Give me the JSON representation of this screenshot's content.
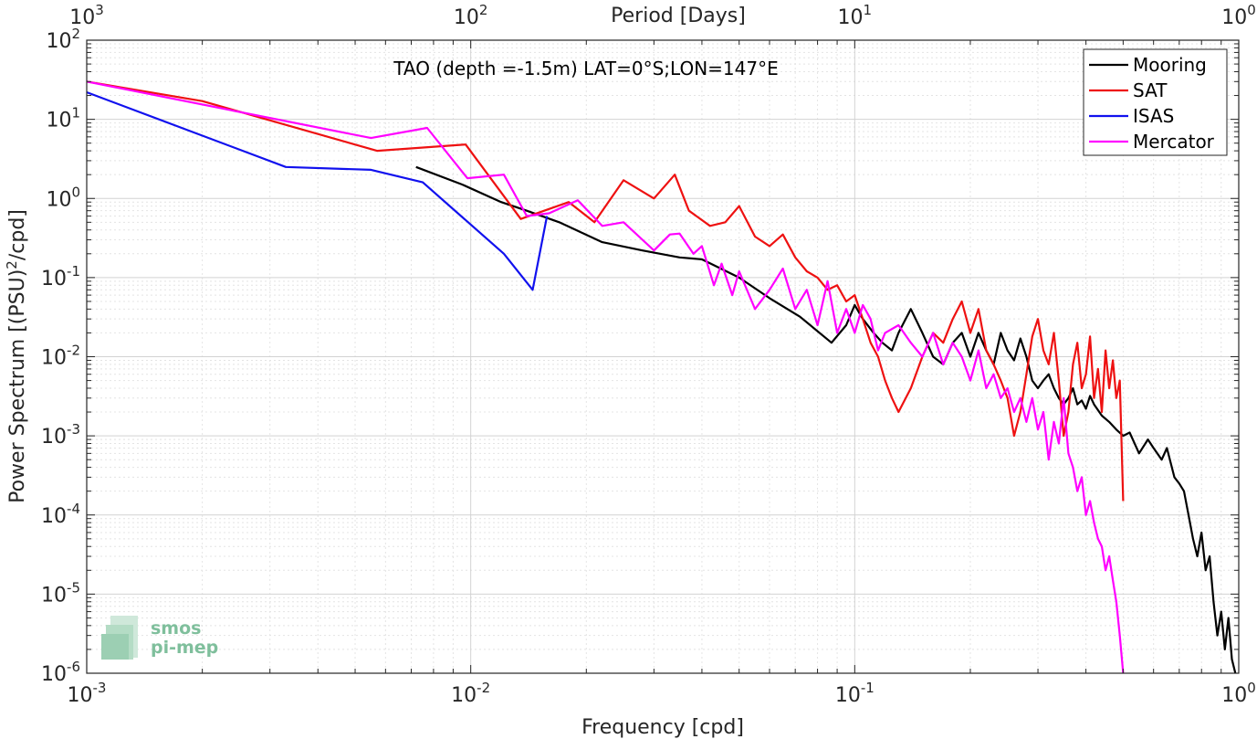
{
  "chart_data": {
    "type": "line",
    "title": "TAO (depth =-1.5m) LAT=0°S;LON=147°E",
    "xlabel": "Frequency [cpd]",
    "ylabel": "Power Spectrum [(PSU)^2/cpd]",
    "top_xlabel": "Period [Days]",
    "xscale": "log",
    "yscale": "log",
    "xlim": [
      0.001,
      1
    ],
    "ylim": [
      1e-06,
      100
    ],
    "grid": true,
    "legend_position": "top-right",
    "x_tick_labels": [
      {
        "value": 0.001,
        "base": "10",
        "exp": "-3"
      },
      {
        "value": 0.01,
        "base": "10",
        "exp": "-2"
      },
      {
        "value": 0.1,
        "base": "10",
        "exp": "-1"
      },
      {
        "value": 1,
        "base": "10",
        "exp": "0"
      }
    ],
    "y_tick_labels": [
      {
        "value": 100,
        "base": "10",
        "exp": "2"
      },
      {
        "value": 10,
        "base": "10",
        "exp": "1"
      },
      {
        "value": 1,
        "base": "10",
        "exp": "0"
      },
      {
        "value": 0.1,
        "base": "10",
        "exp": "-1"
      },
      {
        "value": 0.01,
        "base": "10",
        "exp": "-2"
      },
      {
        "value": 0.001,
        "base": "10",
        "exp": "-3"
      },
      {
        "value": 0.0001,
        "base": "10",
        "exp": "-4"
      },
      {
        "value": 1e-05,
        "base": "10",
        "exp": "-5"
      },
      {
        "value": 1e-06,
        "base": "10",
        "exp": "-6"
      }
    ],
    "top_tick_labels": [
      {
        "period": 1000,
        "base": "10",
        "exp": "3"
      },
      {
        "period": 100,
        "base": "10",
        "exp": "2"
      },
      {
        "period": 10,
        "base": "10",
        "exp": "1"
      },
      {
        "period": 1,
        "base": "10",
        "exp": "0"
      }
    ],
    "series": [
      {
        "name": "Mooring",
        "color": "#000000",
        "x": [
          0.0072,
          0.0095,
          0.012,
          0.014,
          0.017,
          0.022,
          0.028,
          0.035,
          0.04,
          0.05,
          0.06,
          0.072,
          0.087,
          0.095,
          0.1,
          0.105,
          0.112,
          0.118,
          0.125,
          0.13,
          0.14,
          0.15,
          0.16,
          0.17,
          0.18,
          0.19,
          0.2,
          0.21,
          0.22,
          0.23,
          0.24,
          0.25,
          0.26,
          0.27,
          0.28,
          0.29,
          0.3,
          0.31,
          0.32,
          0.33,
          0.34,
          0.35,
          0.36,
          0.37,
          0.38,
          0.39,
          0.4,
          0.41,
          0.42,
          0.44,
          0.46,
          0.48,
          0.5,
          0.52,
          0.55,
          0.58,
          0.6,
          0.63,
          0.65,
          0.68,
          0.7,
          0.72,
          0.74,
          0.76,
          0.78,
          0.8,
          0.82,
          0.84,
          0.86,
          0.88,
          0.9,
          0.92,
          0.94,
          0.96,
          0.98
        ],
        "y": [
          2.5,
          1.5,
          0.9,
          0.7,
          0.5,
          0.28,
          0.22,
          0.18,
          0.17,
          0.1,
          0.055,
          0.032,
          0.015,
          0.025,
          0.045,
          0.03,
          0.02,
          0.015,
          0.012,
          0.02,
          0.04,
          0.02,
          0.01,
          0.008,
          0.015,
          0.02,
          0.01,
          0.02,
          0.012,
          0.008,
          0.02,
          0.012,
          0.009,
          0.017,
          0.01,
          0.005,
          0.004,
          0.005,
          0.006,
          0.004,
          0.003,
          0.0025,
          0.003,
          0.004,
          0.0025,
          0.0028,
          0.0022,
          0.0032,
          0.0025,
          0.0018,
          0.0015,
          0.0012,
          0.001,
          0.0011,
          0.0006,
          0.0009,
          0.0007,
          0.0005,
          0.0007,
          0.0003,
          0.00025,
          0.0002,
          0.0001,
          5e-05,
          3e-05,
          6e-05,
          2e-05,
          3e-05,
          8e-06,
          3e-06,
          6e-06,
          2e-06,
          5e-06,
          1.5e-06,
          1e-06
        ]
      },
      {
        "name": "SAT",
        "color": "#ee1111",
        "x": [
          0.001,
          0.002,
          0.0057,
          0.0097,
          0.0135,
          0.018,
          0.021,
          0.025,
          0.03,
          0.034,
          0.037,
          0.042,
          0.046,
          0.05,
          0.055,
          0.06,
          0.065,
          0.07,
          0.075,
          0.08,
          0.085,
          0.09,
          0.095,
          0.1,
          0.105,
          0.11,
          0.115,
          0.12,
          0.125,
          0.13,
          0.14,
          0.15,
          0.16,
          0.17,
          0.18,
          0.19,
          0.2,
          0.21,
          0.22,
          0.23,
          0.24,
          0.25,
          0.26,
          0.27,
          0.28,
          0.29,
          0.3,
          0.31,
          0.32,
          0.33,
          0.34,
          0.35,
          0.36,
          0.37,
          0.38,
          0.39,
          0.4,
          0.41,
          0.42,
          0.43,
          0.44,
          0.45,
          0.46,
          0.47,
          0.48,
          0.49,
          0.5
        ],
        "y": [
          30,
          17,
          4,
          4.8,
          0.55,
          0.9,
          0.5,
          1.7,
          1.0,
          2.0,
          0.7,
          0.45,
          0.5,
          0.8,
          0.33,
          0.25,
          0.35,
          0.18,
          0.12,
          0.1,
          0.07,
          0.08,
          0.05,
          0.06,
          0.03,
          0.015,
          0.01,
          0.005,
          0.003,
          0.002,
          0.004,
          0.01,
          0.02,
          0.015,
          0.03,
          0.05,
          0.02,
          0.04,
          0.012,
          0.008,
          0.005,
          0.003,
          0.001,
          0.002,
          0.006,
          0.018,
          0.03,
          0.012,
          0.008,
          0.02,
          0.005,
          0.001,
          0.002,
          0.008,
          0.015,
          0.004,
          0.006,
          0.018,
          0.003,
          0.007,
          0.002,
          0.012,
          0.004,
          0.009,
          0.003,
          0.005,
          0.00015
        ]
      },
      {
        "name": "ISAS",
        "color": "#1111ee",
        "x": [
          0.001,
          0.0033,
          0.0055,
          0.0075,
          0.0122,
          0.0145,
          0.0158
        ],
        "y": [
          22,
          2.5,
          2.3,
          1.6,
          0.2,
          0.07,
          0.6
        ]
      },
      {
        "name": "Mercator",
        "color": "#ff00ff",
        "x": [
          0.001,
          0.0055,
          0.0077,
          0.0098,
          0.0122,
          0.014,
          0.016,
          0.019,
          0.022,
          0.025,
          0.028,
          0.03,
          0.033,
          0.035,
          0.038,
          0.04,
          0.043,
          0.045,
          0.048,
          0.05,
          0.055,
          0.06,
          0.065,
          0.07,
          0.075,
          0.08,
          0.085,
          0.09,
          0.095,
          0.1,
          0.105,
          0.11,
          0.115,
          0.12,
          0.13,
          0.14,
          0.15,
          0.16,
          0.17,
          0.18,
          0.19,
          0.2,
          0.21,
          0.22,
          0.23,
          0.24,
          0.25,
          0.26,
          0.27,
          0.28,
          0.29,
          0.3,
          0.31,
          0.32,
          0.33,
          0.34,
          0.35,
          0.36,
          0.37,
          0.38,
          0.39,
          0.4,
          0.41,
          0.42,
          0.43,
          0.44,
          0.45,
          0.46,
          0.47,
          0.48,
          0.49,
          0.5
        ],
        "y": [
          30,
          5.8,
          7.8,
          1.8,
          2.0,
          0.6,
          0.65,
          0.95,
          0.45,
          0.5,
          0.3,
          0.22,
          0.35,
          0.36,
          0.2,
          0.25,
          0.08,
          0.15,
          0.06,
          0.12,
          0.04,
          0.07,
          0.13,
          0.04,
          0.07,
          0.025,
          0.09,
          0.02,
          0.04,
          0.02,
          0.045,
          0.03,
          0.012,
          0.02,
          0.025,
          0.015,
          0.01,
          0.02,
          0.008,
          0.015,
          0.01,
          0.005,
          0.012,
          0.004,
          0.006,
          0.003,
          0.004,
          0.002,
          0.003,
          0.0015,
          0.003,
          0.0012,
          0.002,
          0.0005,
          0.0015,
          0.0008,
          0.003,
          0.0006,
          0.0004,
          0.0002,
          0.0003,
          0.0001,
          0.00015,
          8e-05,
          5e-05,
          4e-05,
          2e-05,
          3e-05,
          1.5e-05,
          8e-06,
          3e-06,
          1e-06
        ]
      }
    ]
  },
  "logo": {
    "line1": "smos",
    "line2": "pi-mep"
  }
}
